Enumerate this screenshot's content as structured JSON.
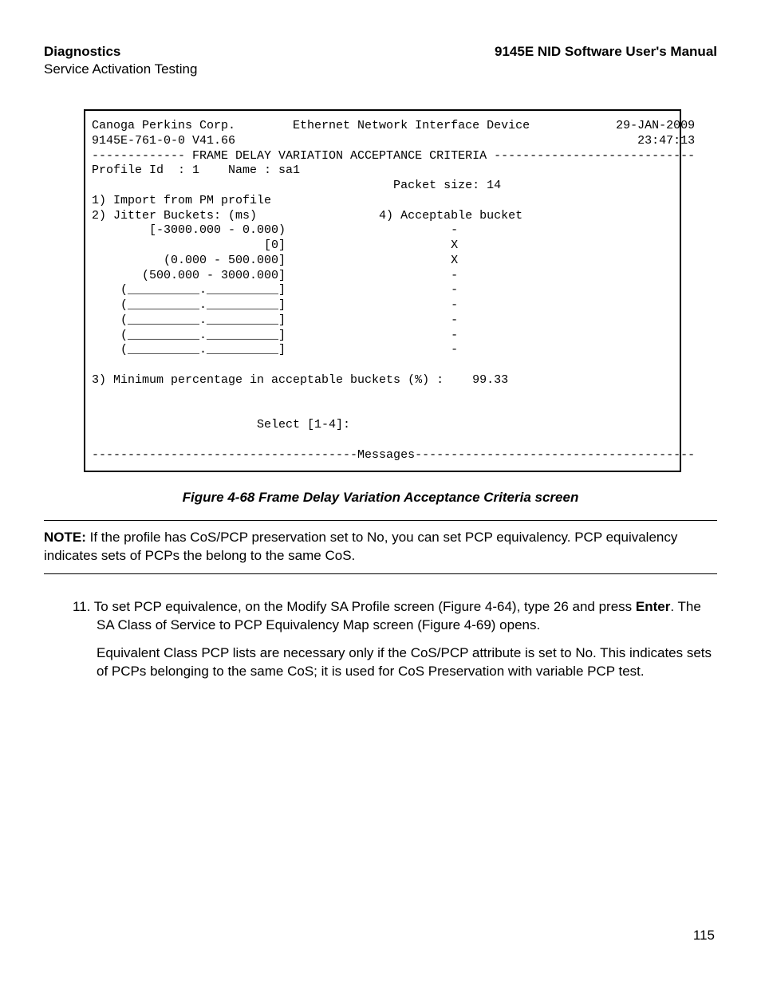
{
  "header": {
    "left": "Diagnostics",
    "right": "9145E NID Software User's Manual",
    "subtitle": "Service Activation Testing"
  },
  "terminal": {
    "company": "Canoga Perkins Corp.",
    "device": "Ethernet Network Interface Device",
    "date": "29-JAN-2009",
    "model": "9145E-761-0-0 V41.66",
    "time": "23:47:13",
    "section_title": " FRAME DELAY VARIATION ACCEPTANCE CRITERIA ",
    "profile_id_label": "Profile Id  : 1",
    "name_label": "Name : sa1",
    "packet_size": "Packet size: 14",
    "opt1": "1) Import from PM profile",
    "opt2": "2) Jitter Buckets: (ms)",
    "opt4": "4) Acceptable bucket",
    "buckets": [
      {
        "range": "[-3000.000 - 0.000)",
        "mark": "-"
      },
      {
        "range": "[0]",
        "mark": "X"
      },
      {
        "range": "(0.000 - 500.000]",
        "mark": "X"
      },
      {
        "range": "(500.000 - 3000.000]",
        "mark": "-"
      },
      {
        "range": "(__________.__________]",
        "mark": "-"
      },
      {
        "range": "(__________.__________]",
        "mark": "-"
      },
      {
        "range": "(__________.__________]",
        "mark": "-"
      },
      {
        "range": "(__________.__________]",
        "mark": "-"
      },
      {
        "range": "(__________.__________]",
        "mark": "-"
      }
    ],
    "opt3": "3) Minimum percentage in acceptable buckets (%) :    99.33",
    "select_prompt": "Select [1-4]:",
    "messages_label": "Messages"
  },
  "figure_caption": "Figure 4-68  Frame Delay Variation Acceptance Criteria screen",
  "note": {
    "label": "NOTE:",
    "text": " If the profile has CoS/PCP preservation set to No, you can set PCP equivalency. PCP equivalency indicates sets of PCPs the belong to the same CoS."
  },
  "step": {
    "num": "11.",
    "text_a": " To set PCP equivalence, on the Modify SA Profile screen (Figure 4-64), type 26 and press ",
    "bold": "Enter",
    "text_b": ". The SA Class of Service to PCP Equivalency Map screen (Figure 4-69) opens.",
    "para2": "Equivalent Class PCP lists are necessary only if the CoS/PCP attribute is set to No. This indicates sets of PCPs belonging to the same CoS; it is used for CoS Preservation with variable PCP test."
  },
  "page_number": "115",
  "style": {
    "font_body": "Arial",
    "font_mono": "Courier New",
    "font_size_body": 17,
    "font_size_mono": 15,
    "text_color": "#000000",
    "background_color": "#ffffff",
    "border_color": "#000000",
    "terminal_border_width": 2
  }
}
